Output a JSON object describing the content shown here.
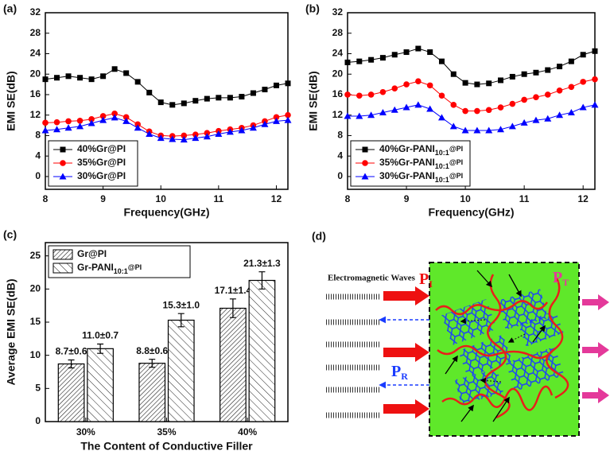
{
  "chart_data": [
    {
      "type": "line",
      "label": "(a)",
      "x_label": "Frequency(GHz)",
      "y_label": "EMI SE(dB)",
      "x": [
        8,
        8.2,
        8.4,
        8.6,
        8.8,
        9,
        9.2,
        9.4,
        9.6,
        9.8,
        10,
        10.2,
        10.4,
        10.6,
        10.8,
        11,
        11.2,
        11.4,
        11.6,
        11.8,
        12,
        12.2
      ],
      "series": [
        {
          "name": "40%Gr@PI",
          "color": "#000000",
          "marker": "square",
          "values": [
            19,
            19.3,
            19.6,
            19.3,
            19.0,
            19.6,
            21.0,
            20.2,
            18.5,
            16.4,
            14.5,
            14.0,
            14.3,
            14.8,
            15.2,
            15.4,
            15.4,
            15.6,
            16.3,
            17.0,
            17.8,
            18.2
          ]
        },
        {
          "name": "35%Gr@PI",
          "color": "#ff0000",
          "marker": "circle",
          "values": [
            10.5,
            10.6,
            10.8,
            10.9,
            11.2,
            11.8,
            12.3,
            11.6,
            10.2,
            8.8,
            8.0,
            7.9,
            8.0,
            8.2,
            8.5,
            8.9,
            9.2,
            9.5,
            10.0,
            10.8,
            11.6,
            12.0
          ]
        },
        {
          "name": "30%Gr@PI",
          "color": "#0000ff",
          "marker": "triangle",
          "values": [
            9.0,
            9.2,
            9.5,
            9.8,
            10.4,
            11.0,
            11.5,
            10.8,
            9.5,
            8.3,
            7.5,
            7.3,
            7.2,
            7.5,
            7.8,
            8.3,
            8.7,
            9.0,
            9.5,
            10.2,
            10.8,
            11.0
          ]
        }
      ],
      "xlim": [
        8,
        12.2
      ],
      "xticks": [
        8,
        9,
        10,
        11,
        12
      ],
      "ylim": [
        -2.5,
        32
      ],
      "yticks": [
        0,
        4,
        8,
        12,
        16,
        20,
        24,
        28,
        32
      ],
      "legend": "lower left"
    },
    {
      "type": "line",
      "label": "(b)",
      "x_label": "Frequency(GHz)",
      "y_label": "EMI SE(dB)",
      "x": [
        8,
        8.2,
        8.4,
        8.6,
        8.8,
        9,
        9.2,
        9.4,
        9.6,
        9.8,
        10,
        10.2,
        10.4,
        10.6,
        10.8,
        11,
        11.2,
        11.4,
        11.6,
        11.8,
        12,
        12.2
      ],
      "series": [
        {
          "name": "40%Gr-PANI10:1@PI",
          "color": "#000000",
          "marker": "square",
          "values": [
            22.3,
            22.5,
            22.8,
            23.2,
            23.8,
            24.3,
            25.0,
            24.3,
            22.5,
            20.0,
            18.3,
            18.0,
            18.2,
            18.8,
            19.5,
            20.0,
            20.3,
            20.8,
            21.5,
            22.5,
            23.8,
            24.5
          ]
        },
        {
          "name": "35%Gr-PANI10:1@PI",
          "color": "#ff0000",
          "marker": "circle",
          "values": [
            16.0,
            15.8,
            16.0,
            16.5,
            17.2,
            18.0,
            18.6,
            17.8,
            15.8,
            14.0,
            12.8,
            12.8,
            13.0,
            13.5,
            14.2,
            15.0,
            15.5,
            16.0,
            16.8,
            17.5,
            18.5,
            19.0
          ]
        },
        {
          "name": "30%Gr-PANI10:1@PI",
          "color": "#0000ff",
          "marker": "triangle",
          "values": [
            11.8,
            11.8,
            12.0,
            12.5,
            13.0,
            13.5,
            14.0,
            13.2,
            11.5,
            9.8,
            9.0,
            9.0,
            9.0,
            9.2,
            9.8,
            10.5,
            11.0,
            11.3,
            12.0,
            12.5,
            13.5,
            14.0
          ]
        }
      ],
      "xlim": [
        8,
        12.2
      ],
      "xticks": [
        8,
        9,
        10,
        11,
        12
      ],
      "ylim": [
        -2.5,
        32
      ],
      "yticks": [
        0,
        4,
        8,
        12,
        16,
        20,
        24,
        28,
        32
      ],
      "legend": "lower left"
    },
    {
      "type": "bar",
      "label": "(c)",
      "x_label": "The Content of Conductive Filler",
      "y_label": "Average EMI SE(dB)",
      "categories": [
        "30%",
        "35%",
        "40%"
      ],
      "series": [
        {
          "name": "Gr@PI",
          "color": "#ffffff",
          "values": [
            8.7,
            8.8,
            17.1
          ],
          "errors": [
            0.6,
            0.6,
            1.4
          ],
          "value_labels": [
            "8.7±0.6",
            "8.8±0.6",
            "17.1±1.4"
          ]
        },
        {
          "name": "Gr-PANI10:1@PI",
          "color": "#ffffff",
          "values": [
            11.0,
            15.3,
            21.3
          ],
          "errors": [
            0.7,
            1.0,
            1.3
          ],
          "value_labels": [
            "11.0±0.7",
            "15.3±1.0",
            "21.3±1.3"
          ]
        }
      ],
      "ylim": [
        0,
        27
      ],
      "yticks": [
        0,
        5,
        10,
        15,
        20,
        25
      ],
      "legend": "upper left"
    }
  ],
  "diagram": {
    "label": "(d)",
    "waves": "Electromagnetic Waves",
    "incident": {
      "main": "P",
      "sub": "I"
    },
    "reflected": {
      "main": "P",
      "sub": "R"
    },
    "transmitted": {
      "main": "P",
      "sub": "T"
    }
  }
}
